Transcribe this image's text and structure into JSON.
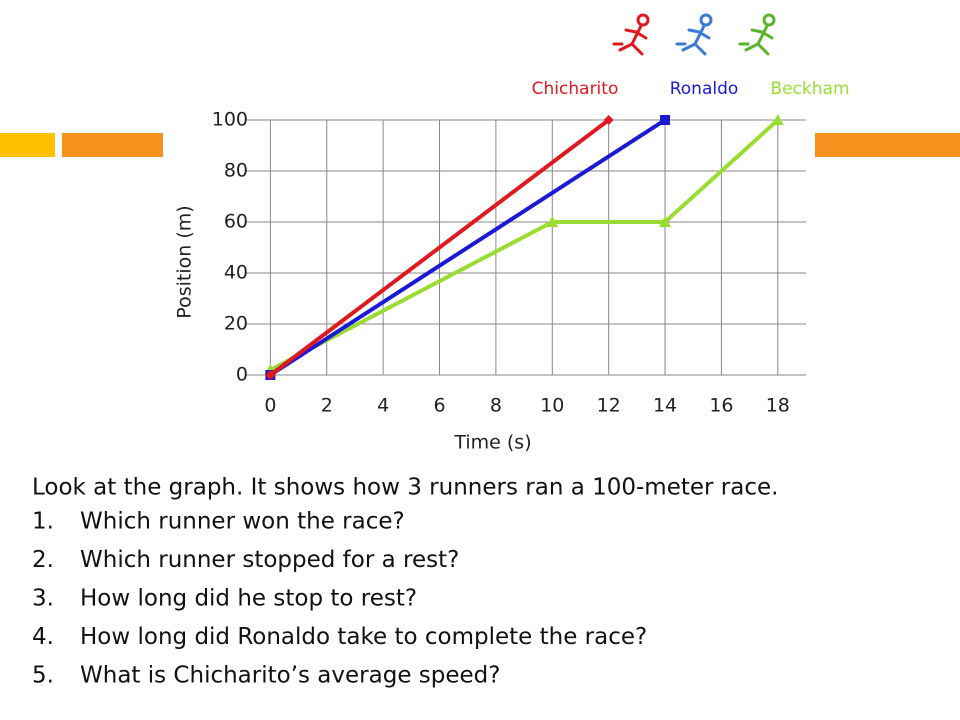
{
  "chart_data": {
    "type": "line",
    "xlabel": "Time (s)",
    "ylabel": "Position (m)",
    "xlim": [
      -0.9,
      19
    ],
    "ylim": [
      0,
      100
    ],
    "xticks": [
      0,
      2,
      4,
      6,
      8,
      10,
      12,
      14,
      16,
      18
    ],
    "yticks": [
      0,
      20,
      40,
      60,
      80,
      100
    ],
    "grid": true,
    "legend": "top-right",
    "series": [
      {
        "name": "Chicharito",
        "color": "#e0191f",
        "marker": "diamond",
        "x": [
          0,
          12
        ],
        "values": [
          0,
          100
        ]
      },
      {
        "name": "Ronaldo",
        "color": "#1a1ad6",
        "marker": "square",
        "x": [
          0,
          14
        ],
        "values": [
          0,
          100
        ]
      },
      {
        "name": "Beckham",
        "color": "#99dd33",
        "marker": "triangle",
        "x": [
          0,
          10,
          14,
          18
        ],
        "values": [
          2,
          60,
          60,
          100
        ]
      }
    ]
  },
  "prompt": "Look at the graph. It shows how 3 runners ran a 100-meter race.",
  "questions": [
    {
      "number": "1.",
      "text": "Which runner won the race?"
    },
    {
      "number": "2.",
      "text": "Which runner stopped for a rest?"
    },
    {
      "number": "3.",
      "text": "How long did he stop to rest?"
    },
    {
      "number": "4.",
      "text": "How long did Ronaldo take to complete the race?"
    },
    {
      "number": "5.",
      "text": "What is Chicharito’s average speed?"
    }
  ]
}
